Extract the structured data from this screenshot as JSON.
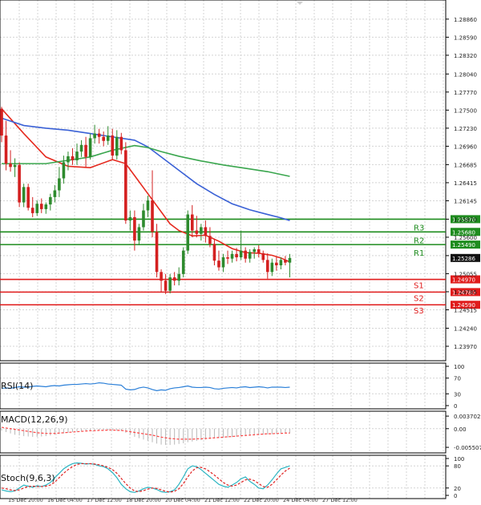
{
  "chart_data": [
    {
      "type": "candlestick",
      "panel": "price",
      "y_axis": {
        "range": [
          1.2385,
          1.2905
        ],
        "ticks": [
          "1.28860",
          "1.28590",
          "1.28320",
          "1.28040",
          "1.27770",
          "1.27500",
          "1.27230",
          "1.26960",
          "1.26685",
          "1.26415",
          "1.26145",
          "1.25870",
          "1.25600",
          "1.25325",
          "1.25055",
          "1.24785",
          "1.24515",
          "1.24240",
          "1.23970"
        ]
      },
      "x_axis": {
        "ticks": [
          "",
          "15 Dec 20:00",
          "16 Dec 04:00",
          "17 Dec 12:00",
          "18 Dec 20:00",
          "20 Dec 04:00",
          "21 Dec 12:00",
          "22 Dec 20:00",
          "24 Dec 04:00",
          "27 Dec 12:00"
        ]
      },
      "candles": [
        [
          1.2752,
          1.2755,
          1.2702,
          1.2712
        ],
        [
          1.2712,
          1.2734,
          1.266,
          1.267
        ],
        [
          1.267,
          1.269,
          1.2658,
          1.2665
        ],
        [
          1.2665,
          1.2678,
          1.265,
          1.2668
        ],
        [
          1.2668,
          1.2672,
          1.2605,
          1.2612
        ],
        [
          1.2612,
          1.264,
          1.2605,
          1.2635
        ],
        [
          1.2635,
          1.264,
          1.26,
          1.2604
        ],
        [
          1.2604,
          1.262,
          1.259,
          1.2596
        ],
        [
          1.2596,
          1.2615,
          1.2592,
          1.261
        ],
        [
          1.261,
          1.2618,
          1.2596,
          1.2602
        ],
        [
          1.2602,
          1.2612,
          1.2595,
          1.2609
        ],
        [
          1.2609,
          1.2625,
          1.26,
          1.262
        ],
        [
          1.262,
          1.2638,
          1.2612,
          1.263
        ],
        [
          1.263,
          1.2665,
          1.262,
          1.2648
        ],
        [
          1.2648,
          1.2682,
          1.264,
          1.2672
        ],
        [
          1.2672,
          1.2688,
          1.266,
          1.2681
        ],
        [
          1.2681,
          1.2693,
          1.2668,
          1.2675
        ],
        [
          1.2675,
          1.27,
          1.2668,
          1.2688
        ],
        [
          1.2688,
          1.2705,
          1.268,
          1.2698
        ],
        [
          1.2698,
          1.271,
          1.2665,
          1.268
        ],
        [
          1.268,
          1.2715,
          1.2676,
          1.2708
        ],
        [
          1.2708,
          1.2728,
          1.27,
          1.2715
        ],
        [
          1.2715,
          1.2722,
          1.27,
          1.271
        ],
        [
          1.271,
          1.2718,
          1.2696,
          1.2704
        ],
        [
          1.2704,
          1.2726,
          1.2698,
          1.2712
        ],
        [
          1.2712,
          1.2722,
          1.2676,
          1.2682
        ],
        [
          1.2682,
          1.272,
          1.2676,
          1.271
        ],
        [
          1.271,
          1.2716,
          1.2684,
          1.269
        ],
        [
          1.269,
          1.2702,
          1.258,
          1.2585
        ],
        [
          1.2585,
          1.26,
          1.257,
          1.259
        ],
        [
          1.259,
          1.26,
          1.254,
          1.2555
        ],
        [
          1.2555,
          1.258,
          1.2548,
          1.2575
        ],
        [
          1.2575,
          1.261,
          1.257,
          1.26
        ],
        [
          1.26,
          1.2622,
          1.259,
          1.2615
        ],
        [
          1.2615,
          1.266,
          1.256,
          1.2568
        ],
        [
          1.2568,
          1.258,
          1.25,
          1.2508
        ],
        [
          1.2508,
          1.2512,
          1.2478,
          1.2495
        ],
        [
          1.2495,
          1.2505,
          1.2475,
          1.248
        ],
        [
          1.248,
          1.2505,
          1.2476,
          1.25
        ],
        [
          1.25,
          1.2508,
          1.2488,
          1.2495
        ],
        [
          1.2495,
          1.2515,
          1.2488,
          1.2505
        ],
        [
          1.2505,
          1.2545,
          1.25,
          1.254
        ],
        [
          1.254,
          1.26,
          1.2535,
          1.2594
        ],
        [
          1.2594,
          1.2608,
          1.256,
          1.257
        ],
        [
          1.257,
          1.2592,
          1.256,
          1.2565
        ],
        [
          1.2565,
          1.258,
          1.2555,
          1.2575
        ],
        [
          1.2575,
          1.2585,
          1.2552,
          1.2562
        ],
        [
          1.2562,
          1.2575,
          1.2545,
          1.255
        ],
        [
          1.255,
          1.2558,
          1.2518,
          1.2525
        ],
        [
          1.2525,
          1.254,
          1.251,
          1.2515
        ],
        [
          1.2515,
          1.2535,
          1.2508,
          1.253
        ],
        [
          1.253,
          1.254,
          1.252,
          1.2528
        ],
        [
          1.2528,
          1.254,
          1.2522,
          1.2535
        ],
        [
          1.2535,
          1.2544,
          1.2524,
          1.253
        ],
        [
          1.253,
          1.257,
          1.2526,
          1.254
        ],
        [
          1.254,
          1.2545,
          1.2522,
          1.2528
        ],
        [
          1.2528,
          1.2542,
          1.2522,
          1.2538
        ],
        [
          1.2538,
          1.2545,
          1.2528,
          1.2542
        ],
        [
          1.2542,
          1.2548,
          1.253,
          1.2536
        ],
        [
          1.2536,
          1.254,
          1.2522,
          1.2526
        ],
        [
          1.2526,
          1.2536,
          1.2498,
          1.2508
        ],
        [
          1.2508,
          1.2528,
          1.2502,
          1.2522
        ],
        [
          1.2522,
          1.253,
          1.251,
          1.2518
        ],
        [
          1.2518,
          1.253,
          1.2512,
          1.2526
        ],
        [
          1.2526,
          1.2532,
          1.2518,
          1.2522
        ],
        [
          1.2522,
          1.2535,
          1.25,
          1.2529
        ]
      ],
      "colors": {
        "up": "#2e8b2e",
        "down": "#d42020",
        "ma_fast": "#e52a1f",
        "ma_mid": "#3a61d6",
        "ma_slow": "#3aa64e"
      },
      "moving_averages": [
        {
          "color": "ma_fast",
          "values": [
            [
              0,
              1.2752
            ],
            [
              5,
              1.2715
            ],
            [
              10,
              1.268
            ],
            [
              15,
              1.2666
            ],
            [
              20,
              1.2664
            ],
            [
              25,
              1.2676
            ],
            [
              28,
              1.267
            ],
            [
              30,
              1.2652
            ],
            [
              33,
              1.2625
            ],
            [
              36,
              1.2598
            ],
            [
              38,
              1.258
            ],
            [
              40,
              1.257
            ],
            [
              43,
              1.2562
            ],
            [
              46,
              1.2563
            ],
            [
              49,
              1.2554
            ],
            [
              52,
              1.2543
            ],
            [
              55,
              1.2537
            ],
            [
              58,
              1.2536
            ],
            [
              61,
              1.2533
            ],
            [
              63,
              1.2529
            ],
            [
              65,
              1.2523
            ]
          ]
        },
        {
          "color": "ma_mid",
          "values": [
            [
              0,
              1.2738
            ],
            [
              5,
              1.2727
            ],
            [
              10,
              1.2723
            ],
            [
              15,
              1.272
            ],
            [
              20,
              1.2715
            ],
            [
              25,
              1.271
            ],
            [
              30,
              1.2705
            ],
            [
              33,
              1.2695
            ],
            [
              36,
              1.268
            ],
            [
              40,
              1.266
            ],
            [
              44,
              1.264
            ],
            [
              48,
              1.2624
            ],
            [
              52,
              1.261
            ],
            [
              56,
              1.2601
            ],
            [
              60,
              1.2594
            ],
            [
              63,
              1.2589
            ],
            [
              65,
              1.2585
            ]
          ]
        },
        {
          "color": "ma_slow",
          "values": [
            [
              0,
              1.267
            ],
            [
              10,
              1.267
            ],
            [
              20,
              1.268
            ],
            [
              25,
              1.269
            ],
            [
              30,
              1.2697
            ],
            [
              33,
              1.2694
            ],
            [
              36,
              1.2688
            ],
            [
              40,
              1.2681
            ],
            [
              45,
              1.2674
            ],
            [
              50,
              1.2668
            ],
            [
              55,
              1.2663
            ],
            [
              60,
              1.2658
            ],
            [
              65,
              1.2651
            ]
          ]
        }
      ],
      "price_marker": {
        "value": 1.2529,
        "label": "1.25286"
      },
      "levels": [
        {
          "name": "R3",
          "value": 1.2587,
          "label": "1.25870",
          "color": "#1e8c1e"
        },
        {
          "name": "R2",
          "value": 1.2568,
          "label": "1.25680",
          "color": "#1e8c1e"
        },
        {
          "name": "R1",
          "value": 1.2549,
          "label": "1.25490",
          "color": "#1e8c1e"
        },
        {
          "name": "S1",
          "value": 1.2497,
          "label": "1.24970",
          "color": "#e01b1b"
        },
        {
          "name": "S2",
          "value": 1.2478,
          "label": "1.24780",
          "color": "#e01b1b"
        },
        {
          "name": "S3",
          "value": 1.2459,
          "label": "1.24590",
          "color": "#e01b1b"
        }
      ]
    },
    {
      "type": "line",
      "panel": "rsi",
      "title": "RSI(14)",
      "y_axis": {
        "range": [
          0,
          100
        ],
        "ticks": [
          "100",
          "70",
          "30",
          "0"
        ]
      },
      "series": [
        {
          "color": "#2a7fd8",
          "values": [
            44,
            45,
            44,
            46,
            48,
            47,
            47,
            49,
            50,
            49,
            48,
            50,
            51,
            50,
            52,
            53,
            54,
            54,
            55,
            56,
            55,
            56,
            58,
            57,
            55,
            54,
            53,
            52,
            42,
            40,
            41,
            45,
            47,
            45,
            41,
            38,
            40,
            39,
            43,
            45,
            46,
            48,
            50,
            47,
            46,
            46,
            47,
            46,
            43,
            42,
            44,
            45,
            46,
            45,
            47,
            48,
            46,
            47,
            48,
            47,
            45,
            47,
            47,
            47,
            46,
            47
          ]
        }
      ]
    },
    {
      "type": "line",
      "panel": "macd",
      "title": "MACD(12,26,9)",
      "y_axis": {
        "range": [
          -0.0062,
          0.0042
        ],
        "ticks": [
          "0.003702",
          "0.00",
          "-0.005507"
        ]
      },
      "series": [
        {
          "color": "#ff4444",
          "dashed": true,
          "values": [
            0.0004,
            0.0002,
            0.0,
            -0.0002,
            -0.0004,
            -0.0006,
            -0.0008,
            -0.001,
            -0.0012,
            -0.0013,
            -0.0014,
            -0.0014,
            -0.0014,
            -0.0013,
            -0.0012,
            -0.0011,
            -0.001,
            -0.0009,
            -0.0008,
            -0.0007,
            -0.0006,
            -0.0006,
            -0.0005,
            -0.0005,
            -0.0004,
            -0.0004,
            -0.0005,
            -0.0005,
            -0.0007,
            -0.0009,
            -0.0011,
            -0.0013,
            -0.0015,
            -0.0017,
            -0.0019,
            -0.0022,
            -0.0025,
            -0.0027,
            -0.0029,
            -0.003,
            -0.0031,
            -0.0031,
            -0.0031,
            -0.0031,
            -0.003,
            -0.003,
            -0.0029,
            -0.0028,
            -0.0027,
            -0.0026,
            -0.0025,
            -0.0024,
            -0.0023,
            -0.0022,
            -0.0021,
            -0.002,
            -0.0019,
            -0.0018,
            -0.0017,
            -0.0016,
            -0.0015,
            -0.0015,
            -0.0014,
            -0.0014,
            -0.0013,
            -0.0013
          ]
        }
      ],
      "histogram": {
        "color": "#b8b8b8",
        "values": [
          -0.0006,
          -0.001,
          -0.0014,
          -0.0018,
          -0.002,
          -0.0022,
          -0.0023,
          -0.0024,
          -0.0024,
          -0.0023,
          -0.0022,
          -0.002,
          -0.0018,
          -0.0016,
          -0.0014,
          -0.0012,
          -0.001,
          -0.0009,
          -0.0008,
          -0.0007,
          -0.0006,
          -0.0005,
          -0.0005,
          -0.0004,
          -0.0004,
          -0.0005,
          -0.0006,
          -0.0007,
          -0.0012,
          -0.0018,
          -0.0024,
          -0.0028,
          -0.0032,
          -0.0036,
          -0.004,
          -0.0044,
          -0.0047,
          -0.0048,
          -0.0048,
          -0.0047,
          -0.0045,
          -0.0043,
          -0.004,
          -0.0038,
          -0.0036,
          -0.0034,
          -0.0032,
          -0.003,
          -0.0029,
          -0.0028,
          -0.0027,
          -0.0026,
          -0.0025,
          -0.0024,
          -0.0023,
          -0.0022,
          -0.0021,
          -0.002,
          -0.0019,
          -0.0018,
          -0.0017,
          -0.0016,
          -0.0015,
          -0.0015,
          -0.0014,
          -0.0014
        ]
      }
    },
    {
      "type": "line",
      "panel": "stoch",
      "title": "Stoch(9,6,3)",
      "y_axis": {
        "range": [
          0,
          100
        ],
        "ticks": [
          "100",
          "80",
          "20",
          "0"
        ]
      },
      "series": [
        {
          "color": "#2bb5c2",
          "values": [
            15,
            12,
            10,
            12,
            20,
            28,
            25,
            22,
            26,
            24,
            28,
            35,
            48,
            60,
            72,
            80,
            86,
            88,
            87,
            85,
            86,
            84,
            80,
            78,
            72,
            62,
            48,
            30,
            18,
            10,
            8,
            12,
            18,
            22,
            20,
            16,
            10,
            8,
            10,
            15,
            30,
            50,
            72,
            80,
            78,
            70,
            60,
            50,
            40,
            30,
            25,
            22,
            28,
            35,
            45,
            50,
            38,
            30,
            20,
            18,
            28,
            42,
            58,
            72,
            76,
            80
          ]
        },
        {
          "color": "#e02020",
          "dashed": true,
          "values": [
            20,
            18,
            15,
            13,
            15,
            20,
            24,
            25,
            24,
            24,
            25,
            28,
            36,
            48,
            60,
            70,
            78,
            84,
            86,
            86,
            86,
            85,
            83,
            80,
            76,
            70,
            60,
            46,
            32,
            20,
            12,
            10,
            13,
            17,
            20,
            19,
            15,
            11,
            9,
            11,
            18,
            32,
            50,
            66,
            75,
            76,
            72,
            64,
            55,
            45,
            35,
            28,
            25,
            28,
            35,
            42,
            44,
            40,
            32,
            24,
            22,
            30,
            42,
            55,
            66,
            74
          ]
        }
      ]
    }
  ]
}
